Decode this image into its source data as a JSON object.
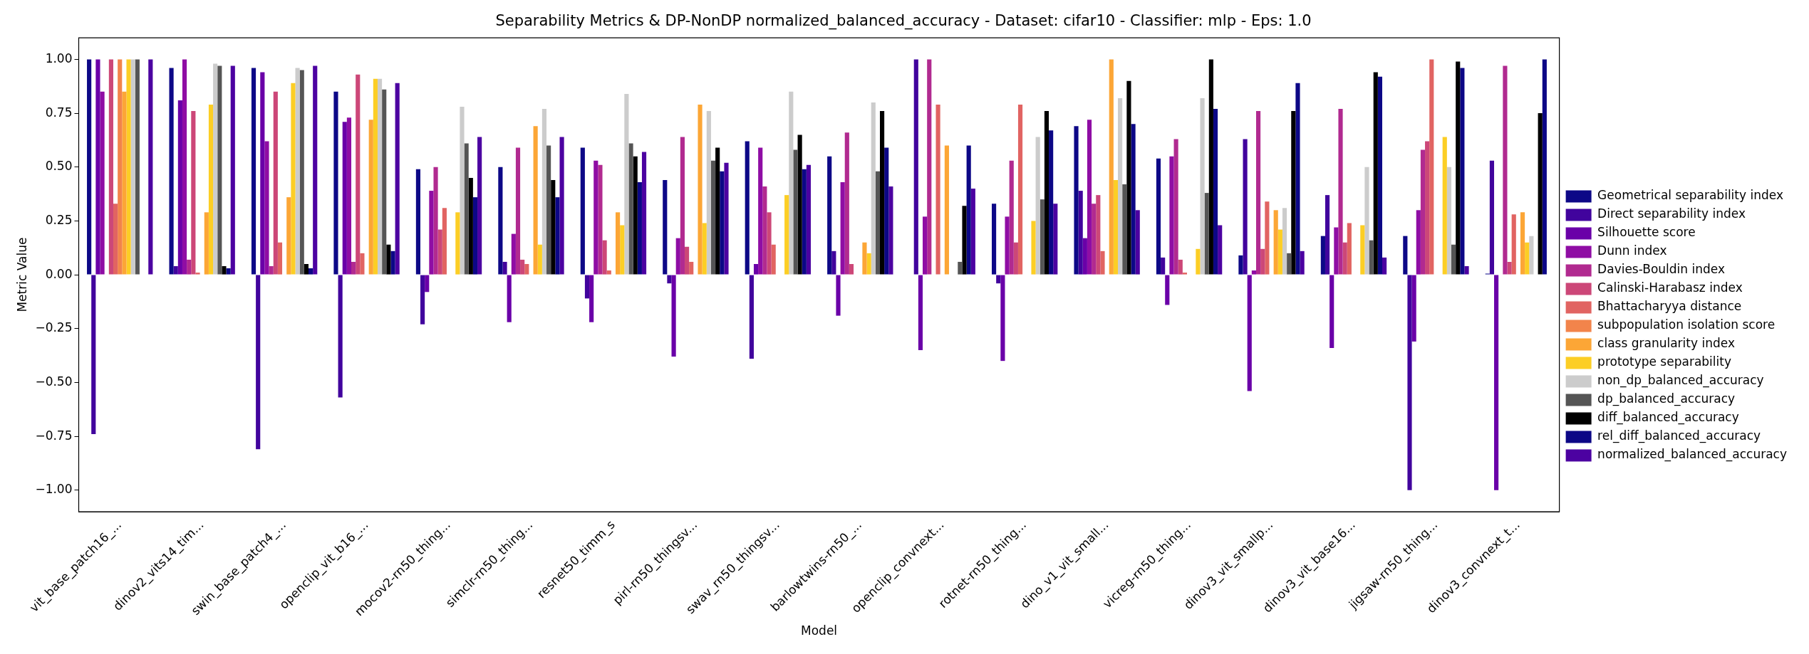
{
  "chart_data": {
    "type": "bar",
    "title": "Separability Metrics & DP-NonDP normalized_balanced_accuracy - Dataset: cifar10 - Classifier: mlp - Eps: 1.0",
    "xlabel": "Model",
    "ylabel": "Metric Value",
    "categories": [
      "vit_base_patch16_...",
      "dinov2_vits14_tim...",
      "swin_base_patch4_...",
      "openclip_vit_b16_...",
      "mocov2-rn50_thing...",
      "simclr-rn50_thing...",
      "resnet50_timm_s",
      "pirl-rn50_thingsv...",
      "swav_rn50_thingsv...",
      "barlowtwins-rn50_...",
      "openclip_convnext...",
      "rotnet-rn50_thing...",
      "dino_v1_vit_small...",
      "vicreg-rn50_thing...",
      "dinov3_vit_smallp...",
      "dinov3_vit_base16...",
      "jigsaw-rn50_thing...",
      "dinov3_convnext_t..."
    ],
    "series": [
      {
        "name": "Geometrical separability index",
        "color": "#0d0887",
        "values": [
          1.0,
          0.96,
          0.96,
          0.85,
          0.49,
          0.5,
          0.59,
          0.44,
          0.62,
          0.55,
          0,
          0.33,
          0.69,
          0.54,
          0.09,
          0.18,
          0.18,
          0.005
        ]
      },
      {
        "name": "Direct separability index",
        "color": "#41049d",
        "values": [
          -0.74,
          0.04,
          -0.81,
          -0.57,
          -0.23,
          0.06,
          -0.11,
          -0.04,
          -0.39,
          0.11,
          1.0,
          -0.04,
          0.39,
          0.08,
          0.63,
          0.37,
          -1.0,
          0.53
        ]
      },
      {
        "name": "Silhouette score",
        "color": "#6a00a8",
        "values": [
          1.0,
          0.81,
          0.94,
          0.71,
          -0.08,
          -0.22,
          -0.22,
          -0.38,
          0.05,
          -0.19,
          -0.35,
          -0.4,
          0.17,
          -0.14,
          -0.54,
          -0.34,
          -0.31,
          -1.0
        ]
      },
      {
        "name": "Dunn index",
        "color": "#8f0da4",
        "values": [
          0.85,
          1.0,
          0.62,
          0.73,
          0.39,
          0.19,
          0.53,
          0.17,
          0.59,
          0.43,
          0.27,
          0.27,
          0.72,
          0.55,
          0.02,
          0.22,
          0.3,
          0
        ]
      },
      {
        "name": "Davies-Bouldin index",
        "color": "#b12a90",
        "values": [
          0,
          0.07,
          0.04,
          0.06,
          0.5,
          0.59,
          0.51,
          0.64,
          0.41,
          0.66,
          1.0,
          0.53,
          0.33,
          0.63,
          0.76,
          0.77,
          0.58,
          0.97
        ]
      },
      {
        "name": "Calinski-Harabasz index",
        "color": "#cc4778",
        "values": [
          1.0,
          0.76,
          0.85,
          0.93,
          0.21,
          0.07,
          0.16,
          0.13,
          0.29,
          0.05,
          0,
          0.15,
          0.37,
          0.07,
          0.12,
          0.15,
          0.62,
          0.06
        ]
      },
      {
        "name": "Bhattacharyya distance",
        "color": "#e16462",
        "values": [
          0.33,
          0.01,
          0.15,
          0.1,
          0.31,
          0.05,
          0.02,
          0.06,
          0.14,
          0,
          0.79,
          0.79,
          0.11,
          0.01,
          0.34,
          0.24,
          1.0,
          0.28
        ]
      },
      {
        "name": "subpopulation isolation score",
        "color": "#f2844b",
        "values": [
          1.0,
          0,
          0,
          0,
          0,
          0,
          0,
          0,
          0,
          0,
          0,
          0,
          0,
          0,
          0,
          0,
          0,
          0
        ]
      },
      {
        "name": "class granularity index",
        "color": "#fca636",
        "values": [
          0.85,
          0.29,
          0.36,
          0.72,
          0,
          0.69,
          0.29,
          0.79,
          0,
          0.15,
          0.6,
          0,
          1.0,
          0,
          0.3,
          0,
          0,
          0.29
        ]
      },
      {
        "name": "prototype separability",
        "color": "#fcce25",
        "values": [
          1.0,
          0.79,
          0.89,
          0.91,
          0.29,
          0.14,
          0.23,
          0.24,
          0.37,
          0.1,
          0,
          0.25,
          0.44,
          0.12,
          0.21,
          0.23,
          0.64,
          0.15
        ]
      },
      {
        "name": "non_dp_balanced_accuracy",
        "color": "#cccccc",
        "values": [
          1.0,
          0.98,
          0.96,
          0.91,
          0.78,
          0.77,
          0.84,
          0.76,
          0.85,
          0.8,
          0,
          0.64,
          0.82,
          0.82,
          0.31,
          0.5,
          0.5,
          0.18
        ]
      },
      {
        "name": "dp_balanced_accuracy",
        "color": "#555555",
        "values": [
          1.0,
          0.97,
          0.95,
          0.86,
          0.61,
          0.6,
          0.61,
          0.53,
          0.58,
          0.48,
          0.06,
          0.35,
          0.42,
          0.38,
          0.1,
          0.16,
          0.14,
          0
        ]
      },
      {
        "name": "diff_balanced_accuracy",
        "color": "#000000",
        "values": [
          0,
          0.04,
          0.05,
          0.14,
          0.45,
          0.44,
          0.55,
          0.59,
          0.65,
          0.76,
          0.32,
          0.76,
          0.9,
          1.0,
          0.76,
          0.94,
          0.99,
          0.75
        ]
      },
      {
        "name": "rel_diff_balanced_accuracy",
        "color": "#0c0786",
        "values": [
          0,
          0.03,
          0.03,
          0.11,
          0.36,
          0.36,
          0.43,
          0.48,
          0.49,
          0.59,
          0.6,
          0.67,
          0.7,
          0.77,
          0.89,
          0.92,
          0.96,
          1.0
        ]
      },
      {
        "name": "normalized_balanced_accuracy",
        "color": "#4c02a1",
        "values": [
          1.0,
          0.97,
          0.97,
          0.89,
          0.64,
          0.64,
          0.57,
          0.52,
          0.51,
          0.41,
          0.4,
          0.33,
          0.3,
          0.23,
          0.11,
          0.08,
          0.04,
          0
        ]
      }
    ],
    "ylim": [
      -1.1,
      1.1
    ],
    "yticks": [
      {
        "value": -1,
        "label": "−1.00"
      },
      {
        "value": -0.75,
        "label": "−0.75"
      },
      {
        "value": -0.5,
        "label": "−0.50"
      },
      {
        "value": -0.25,
        "label": "−0.25"
      },
      {
        "value": 0,
        "label": "0.00"
      },
      {
        "value": 0.25,
        "label": "0.25"
      },
      {
        "value": 0.5,
        "label": "0.50"
      },
      {
        "value": 0.75,
        "label": "0.75"
      },
      {
        "value": 1,
        "label": "1.00"
      }
    ],
    "grid": false,
    "legend": "right"
  }
}
